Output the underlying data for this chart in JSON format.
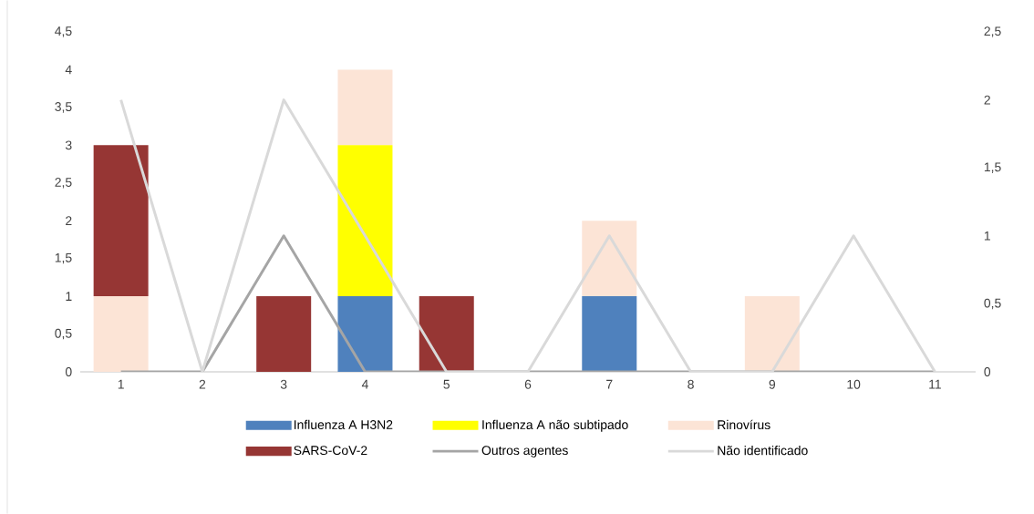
{
  "chart_data": {
    "type": "bar",
    "stacked": true,
    "legend": "bottom",
    "marker": "none",
    "line_style": "solid",
    "categories": [
      "1",
      "2",
      "3",
      "4",
      "5",
      "6",
      "7",
      "8",
      "9",
      "10",
      "11"
    ],
    "ylim": [
      0,
      4.5
    ],
    "yticks": [
      0,
      {
        "value": 0.5,
        "label": "0,5"
      },
      1,
      {
        "value": 1.5,
        "label": "1,5"
      },
      2,
      {
        "value": 2.5,
        "label": "2,5"
      },
      3,
      {
        "value": 3.5,
        "label": "3,5"
      },
      4,
      {
        "value": 4.5,
        "label": "4,5"
      }
    ],
    "y2lim": [
      0,
      2.5
    ],
    "y2ticks": [
      0,
      {
        "value": 0.5,
        "label": "0,5"
      },
      1,
      {
        "value": 1.5,
        "label": "1,5"
      },
      2,
      {
        "value": 2.5,
        "label": "2,5"
      }
    ],
    "series": [
      {
        "name": "Influenza A H3N2",
        "color": "#4f81bd",
        "values": [
          0,
          0,
          0,
          1,
          0,
          0,
          1,
          0,
          0,
          0,
          0
        ]
      },
      {
        "name": "Influenza A não subtipado",
        "color": "#ffff00",
        "values": [
          0,
          0,
          0,
          2,
          0,
          0,
          0,
          0,
          0,
          0,
          0
        ]
      },
      {
        "name": "Rinovírus",
        "color": "#fce4d6",
        "values": [
          1,
          0,
          0,
          1,
          0,
          0,
          1,
          0,
          1,
          0,
          0
        ]
      },
      {
        "name": "SARS-CoV-2",
        "color": "#963634",
        "values": [
          2,
          0,
          1,
          0,
          1,
          0,
          0,
          0,
          0,
          0,
          0
        ]
      },
      {
        "name": "Outros agentes",
        "type": "line",
        "axis": "y2",
        "color": "#a5a5a5",
        "values": [
          0,
          0,
          1,
          0,
          0,
          0,
          0,
          0,
          0,
          0,
          0
        ]
      },
      {
        "name": "Não identificado",
        "type": "line",
        "axis": "y2",
        "color": "#d9d9d9",
        "values": [
          2,
          0,
          2,
          1,
          0,
          0,
          1,
          0,
          0,
          1,
          0
        ]
      }
    ]
  }
}
